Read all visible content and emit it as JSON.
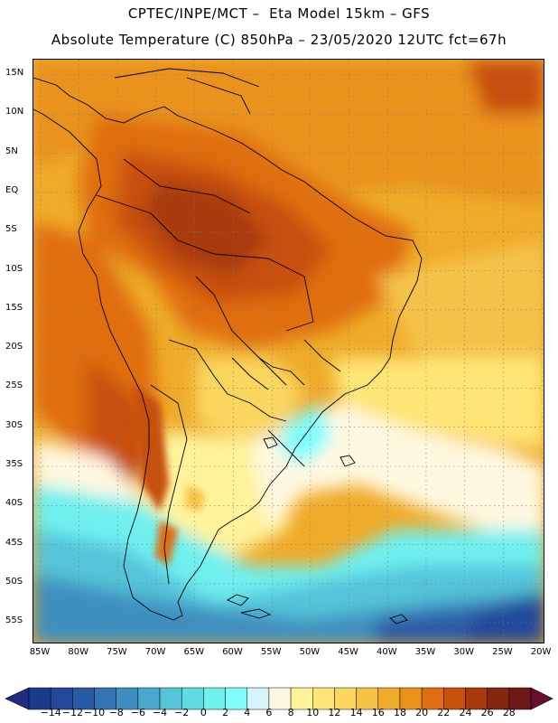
{
  "header": {
    "title_line1": "CPTEC/INPE/MCT –  Eta Model 15km – GFS",
    "title_line2": "Absolute Temperature (C) 850hPa – 23/05/2020 12UTC fct=67h"
  },
  "map": {
    "lat_ticks": [
      "15N",
      "10N",
      "5N",
      "EQ",
      "5S",
      "10S",
      "15S",
      "20S",
      "25S",
      "30S",
      "35S",
      "40S",
      "45S",
      "50S",
      "55S"
    ],
    "lon_ticks": [
      "85W",
      "80W",
      "75W",
      "70W",
      "65W",
      "60W",
      "55W",
      "50W",
      "45W",
      "40W",
      "35W",
      "30W",
      "25W",
      "20W"
    ],
    "lat_range": [
      15,
      -58
    ],
    "lon_range": [
      -86,
      -20
    ],
    "grid": "dotted",
    "field": "temperature_850hPa"
  },
  "colorbar": {
    "labels": [
      "-14",
      "-12",
      "-10",
      "-8",
      "-6",
      "-4",
      "-2",
      "0",
      "2",
      "4",
      "6",
      "8",
      "10",
      "12",
      "14",
      "16",
      "18",
      "20",
      "22",
      "24",
      "26",
      "28"
    ],
    "colors": [
      "#1a3b8c",
      "#22489a",
      "#2a5aa6",
      "#3374b2",
      "#3d8fbf",
      "#48a9cc",
      "#54c4d9",
      "#5fdbe4",
      "#6ef0ef",
      "#7ffdfd",
      "#d4f6fb",
      "#fff8e0",
      "#fff39a",
      "#ffe675",
      "#fbd75e",
      "#f5c248",
      "#efab2a",
      "#e9921a",
      "#e06e10",
      "#c8500c",
      "#a83a0c",
      "#852710",
      "#6e1818"
    ],
    "under_color": "#1f2d80",
    "over_color": "#6a0f2b"
  }
}
